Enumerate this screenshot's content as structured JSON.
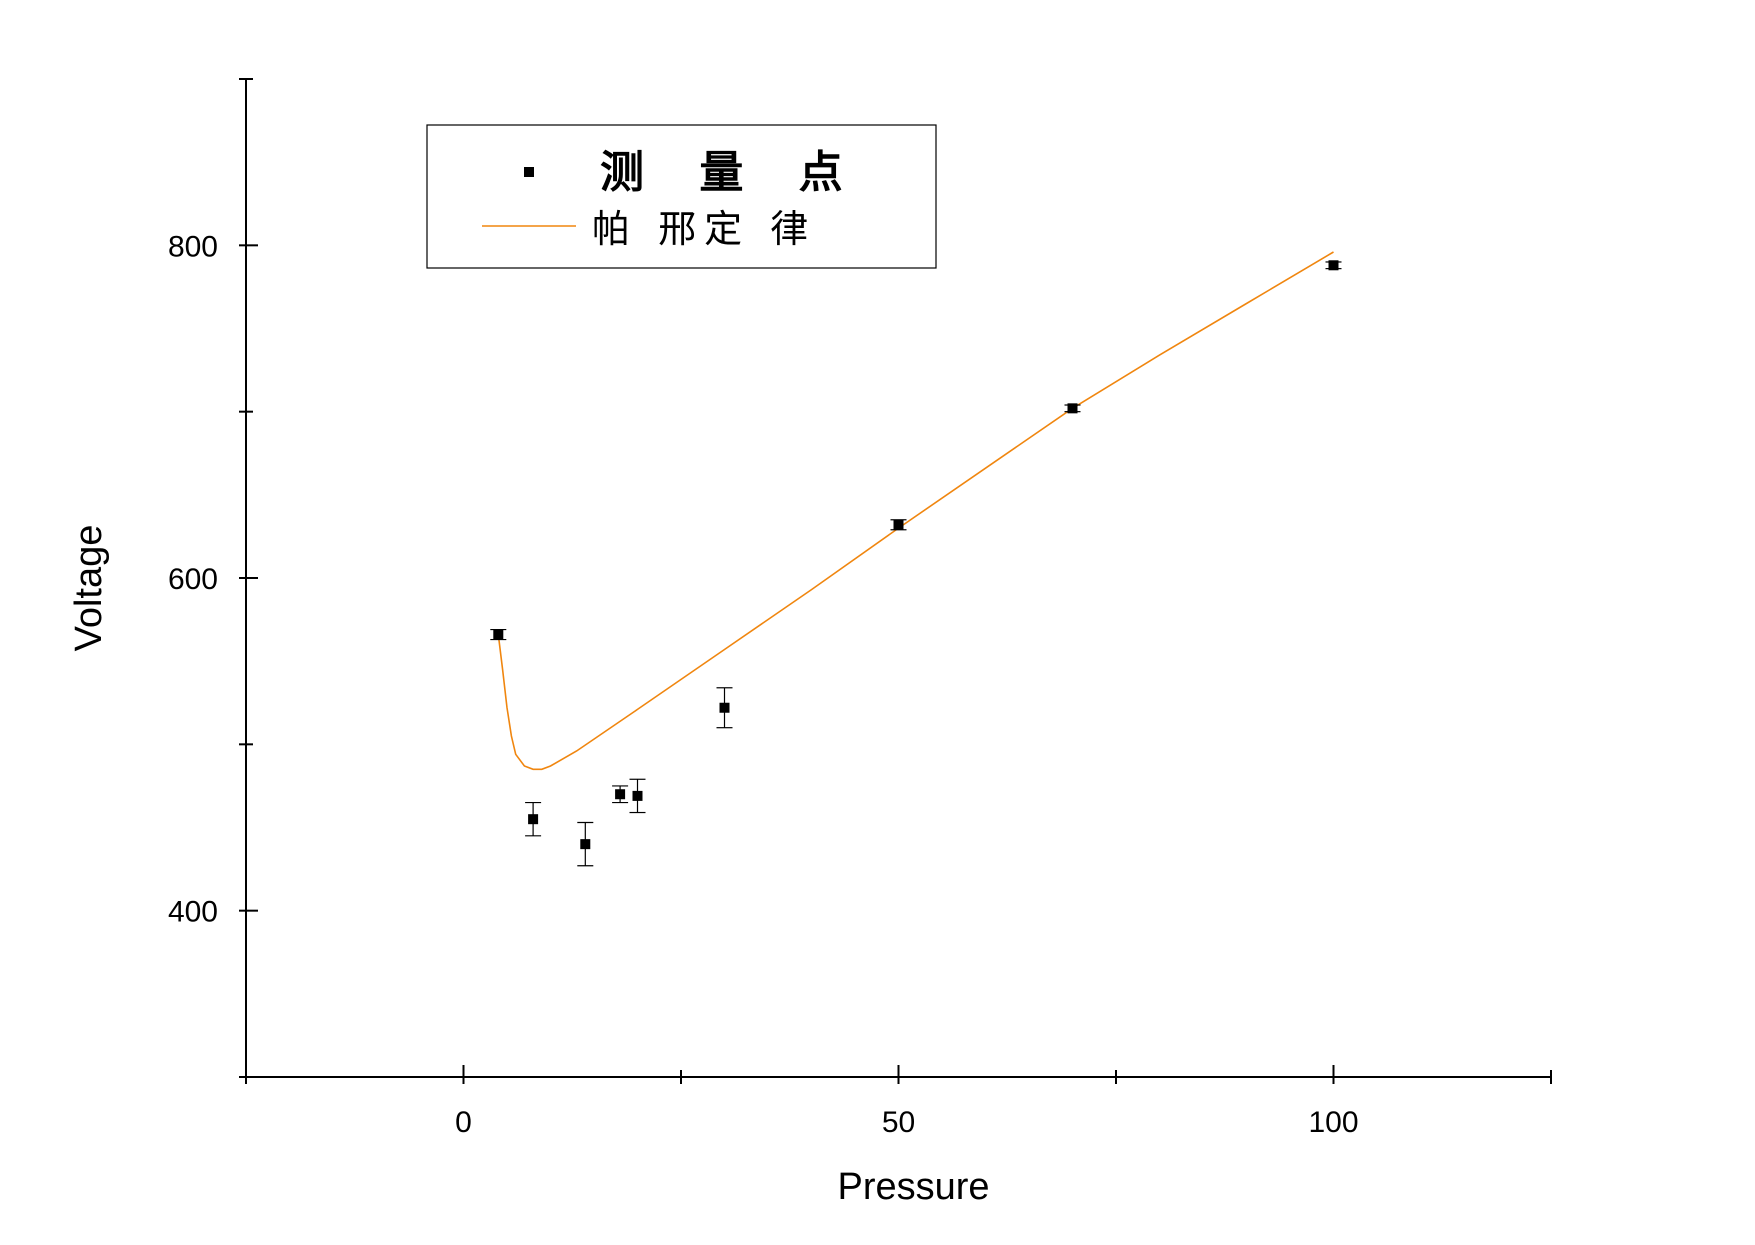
{
  "chart_data": {
    "type": "scatter",
    "title": "",
    "xlabel": "Pressure",
    "ylabel": "Voltage",
    "xlim": [
      -25,
      125
    ],
    "ylim": [
      300,
      900
    ],
    "x_ticks": [
      0,
      50,
      100
    ],
    "x_tick_labels": [
      "0",
      "50",
      "100"
    ],
    "y_ticks": [
      400,
      600,
      800
    ],
    "y_tick_labels": [
      "400",
      "600",
      "800"
    ],
    "grid": false,
    "legend_position": "top-left",
    "series": [
      {
        "name": "测 量 点",
        "kind": "scatter",
        "color": "#000000",
        "points": [
          {
            "x": 4,
            "y": 566,
            "err": 3
          },
          {
            "x": 8,
            "y": 455,
            "err": 10
          },
          {
            "x": 14,
            "y": 440,
            "err": 13
          },
          {
            "x": 18,
            "y": 470,
            "err": 5
          },
          {
            "x": 20,
            "y": 469,
            "err": 10
          },
          {
            "x": 30,
            "y": 522,
            "err": 12
          },
          {
            "x": 50,
            "y": 632,
            "err": 3
          },
          {
            "x": 70,
            "y": 702,
            "err": 2
          },
          {
            "x": 100,
            "y": 788,
            "err": 2
          }
        ]
      },
      {
        "name": "帕 邢定 律",
        "kind": "line",
        "color": "#f0860f",
        "points": [
          {
            "x": 4,
            "y": 566
          },
          {
            "x": 4.5,
            "y": 545
          },
          {
            "x": 5,
            "y": 522
          },
          {
            "x": 5.5,
            "y": 505
          },
          {
            "x": 6,
            "y": 494
          },
          {
            "x": 7,
            "y": 487
          },
          {
            "x": 8,
            "y": 485
          },
          {
            "x": 9,
            "y": 485
          },
          {
            "x": 10,
            "y": 487
          },
          {
            "x": 13,
            "y": 496
          },
          {
            "x": 20,
            "y": 521
          },
          {
            "x": 30,
            "y": 557
          },
          {
            "x": 40,
            "y": 593
          },
          {
            "x": 50,
            "y": 630
          },
          {
            "x": 60,
            "y": 666
          },
          {
            "x": 70,
            "y": 702
          },
          {
            "x": 80,
            "y": 734
          },
          {
            "x": 90,
            "y": 765
          },
          {
            "x": 100,
            "y": 796
          }
        ]
      }
    ]
  }
}
